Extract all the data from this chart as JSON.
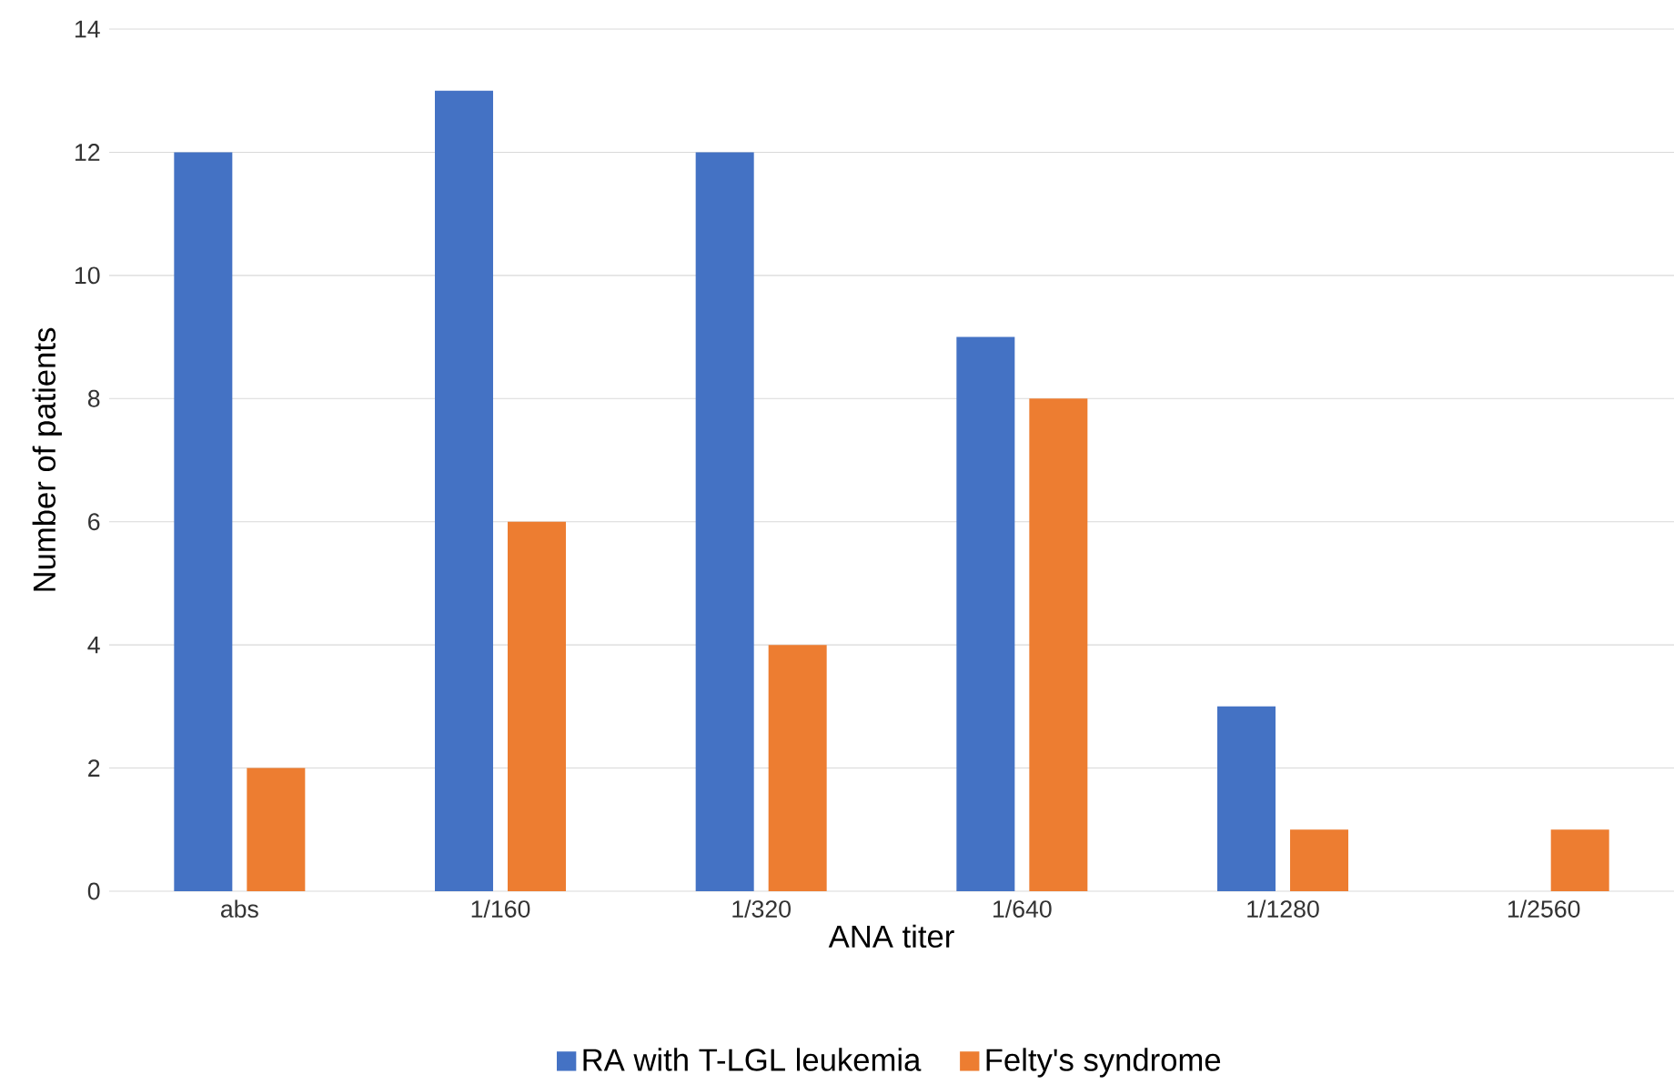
{
  "chart_data": {
    "type": "bar",
    "xlabel": "ANA titer",
    "ylabel": "Number of patients",
    "categories": [
      "abs",
      "1/160",
      "1/320",
      "1/640",
      "1/1280",
      "1/2560"
    ],
    "series": [
      {
        "name": "RA with T-LGL leukemia",
        "color": "#4472c4",
        "values": [
          12,
          13,
          12,
          9,
          3,
          0
        ]
      },
      {
        "name": "Felty's syndrome",
        "color": "#ed7d31",
        "values": [
          2,
          6,
          4,
          8,
          1,
          1
        ]
      }
    ],
    "ylim": [
      0,
      14
    ],
    "yticks": [
      0,
      2,
      4,
      6,
      8,
      10,
      12,
      14
    ],
    "grid": "y",
    "legend": "bottom"
  }
}
